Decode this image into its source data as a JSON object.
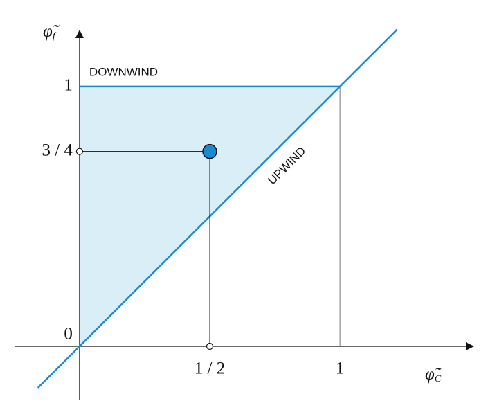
{
  "chart_data": {
    "type": "nvd",
    "xlabel_symbol": "φ̃",
    "xlabel_subscript": "C",
    "ylabel_symbol": "φ̃",
    "ylabel_subscript": "f",
    "xlim": [
      -0.247,
      1.51
    ],
    "ylim": [
      -0.208,
      1.213
    ],
    "xticks": [
      {
        "value": 0.5,
        "label": "1 / 2"
      },
      1
    ],
    "yticks": [
      0,
      {
        "value": 0.75,
        "label": "3 / 4"
      },
      1
    ],
    "series": [
      {
        "name": "DOWNWIND",
        "color": "#1a8ad0",
        "x": [
          0,
          1
        ],
        "values": [
          1,
          1
        ]
      },
      {
        "name": "UPWIND",
        "color": "#1a8ad0",
        "x": [
          -0.16,
          1.22
        ],
        "values": [
          -0.16,
          1.22
        ]
      }
    ],
    "points": {
      "x": [
        0.5
      ],
      "values": [
        0.75
      ],
      "color": "#1a8ad0"
    },
    "region_color": "#d9eef7"
  }
}
